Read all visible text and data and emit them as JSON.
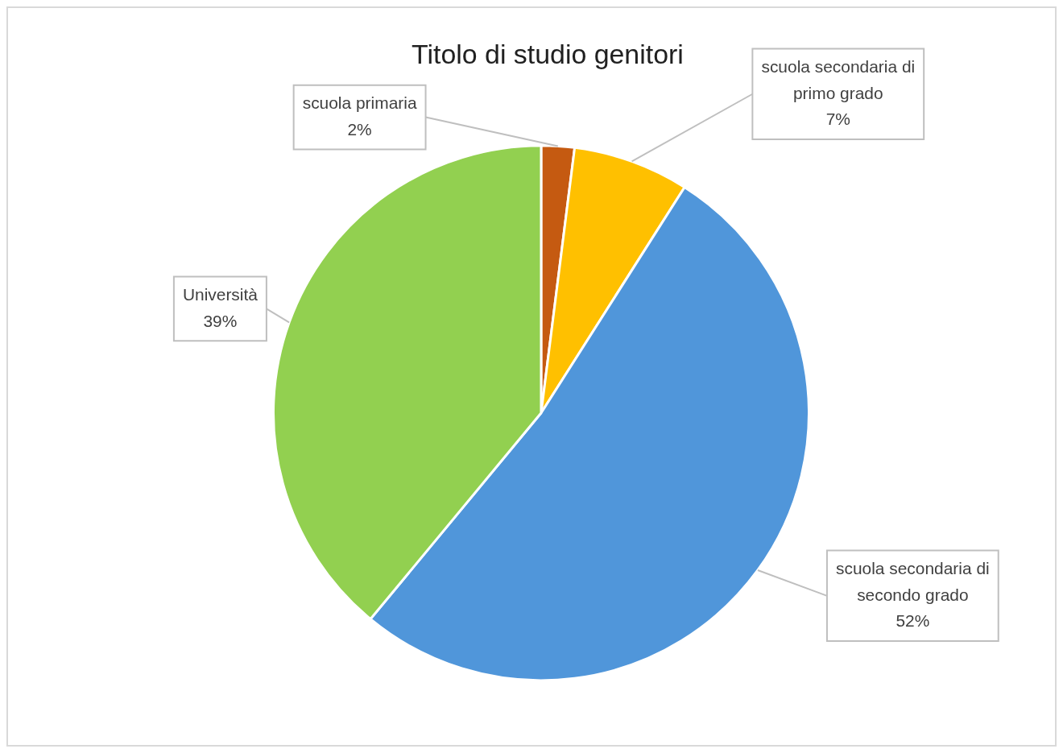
{
  "chart_data": {
    "type": "pie",
    "title": "Titolo di studio genitori",
    "categories": [
      "scuola primaria",
      "scuola secondaria di primo grado",
      "scuola secondaria di secondo grado",
      "Università"
    ],
    "values": [
      2,
      7,
      52,
      39
    ],
    "colors": [
      "#c55a11",
      "#ffc000",
      "#5096da",
      "#92d050"
    ],
    "value_labels": [
      "2%",
      "7%",
      "52%",
      "39%"
    ],
    "legend": false
  }
}
